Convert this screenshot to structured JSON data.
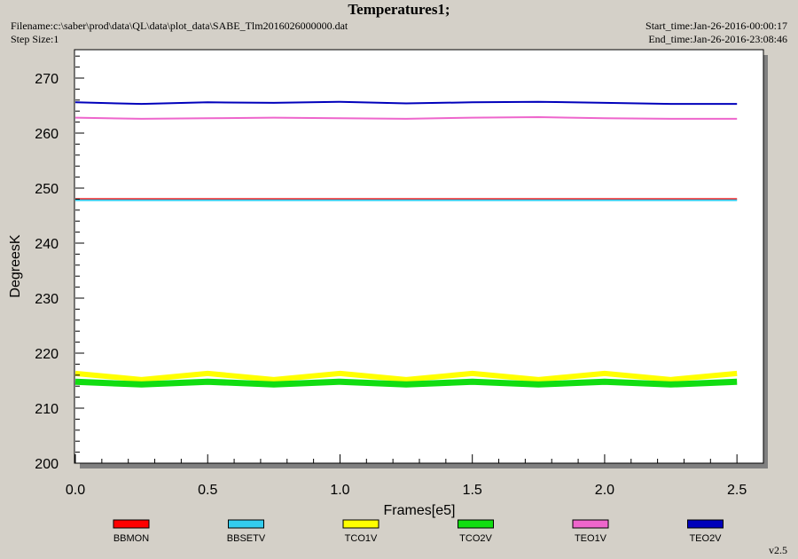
{
  "header": {
    "title": "Temperatures1;",
    "filename": "Filename:c:\\saber\\prod\\data\\QL\\data\\plot_data\\SABE_Tlm2016026000000.dat",
    "step_size": "Step Size:1",
    "start_time": "Start_time:Jan-26-2016-00:00:17",
    "end_time": "End_time:Jan-26-2016-23:08:46"
  },
  "version": "v2.5",
  "chart_data": {
    "type": "line",
    "xlabel": "Frames[e5]",
    "ylabel": "DegreesK",
    "xlim": [
      0,
      2.6
    ],
    "ylim": [
      200,
      275
    ],
    "xticks": [
      0.0,
      0.5,
      1.0,
      1.5,
      2.0,
      2.5
    ],
    "xtick_labels": [
      "0.0",
      "0.5",
      "1.0",
      "1.5",
      "2.0",
      "2.5"
    ],
    "yticks": [
      200,
      210,
      220,
      230,
      240,
      250,
      260,
      270
    ],
    "ytick_labels": [
      "200",
      "210",
      "220",
      "230",
      "240",
      "250",
      "260",
      "270"
    ],
    "grid": false,
    "legend_position": "bottom",
    "series": [
      {
        "name": "BBMON",
        "color": "#ff0000",
        "x": [
          0.0,
          0.25,
          0.5,
          0.75,
          1.0,
          1.25,
          1.5,
          1.75,
          2.0,
          2.25,
          2.5
        ],
        "values": [
          248.0,
          248.0,
          248.0,
          248.0,
          248.0,
          248.0,
          248.0,
          248.0,
          248.0,
          248.0,
          248.0
        ]
      },
      {
        "name": "BBSETV",
        "color": "#33ccee",
        "x": [
          0.0,
          0.25,
          0.5,
          0.75,
          1.0,
          1.25,
          1.5,
          1.75,
          2.0,
          2.25,
          2.5
        ],
        "values": [
          247.8,
          247.8,
          247.8,
          247.8,
          247.8,
          247.8,
          247.8,
          247.8,
          247.8,
          247.8,
          247.8
        ]
      },
      {
        "name": "TCO1V",
        "color": "#ffff00",
        "x": [
          0.0,
          0.25,
          0.5,
          0.75,
          1.0,
          1.25,
          1.5,
          1.75,
          2.0,
          2.25,
          2.5
        ],
        "values": [
          216.3,
          215.2,
          216.3,
          215.2,
          216.3,
          215.2,
          216.3,
          215.2,
          216.3,
          215.2,
          216.3
        ]
      },
      {
        "name": "TCO2V",
        "color": "#11dd11",
        "x": [
          0.0,
          0.25,
          0.5,
          0.75,
          1.0,
          1.25,
          1.5,
          1.75,
          2.0,
          2.25,
          2.5
        ],
        "values": [
          214.8,
          214.3,
          214.8,
          214.3,
          214.8,
          214.3,
          214.8,
          214.3,
          214.8,
          214.3,
          214.8
        ]
      },
      {
        "name": "TEO1V",
        "color": "#ee66cc",
        "x": [
          0.0,
          0.25,
          0.5,
          0.75,
          1.0,
          1.25,
          1.5,
          1.75,
          2.0,
          2.25,
          2.5
        ],
        "values": [
          262.8,
          262.6,
          262.7,
          262.8,
          262.7,
          262.6,
          262.8,
          262.9,
          262.7,
          262.6,
          262.6
        ]
      },
      {
        "name": "TEO2V",
        "color": "#0000bb",
        "x": [
          0.0,
          0.25,
          0.5,
          0.75,
          1.0,
          1.25,
          1.5,
          1.75,
          2.0,
          2.25,
          2.5
        ],
        "values": [
          265.6,
          265.3,
          265.6,
          265.5,
          265.7,
          265.4,
          265.6,
          265.7,
          265.5,
          265.3,
          265.3
        ]
      }
    ]
  }
}
